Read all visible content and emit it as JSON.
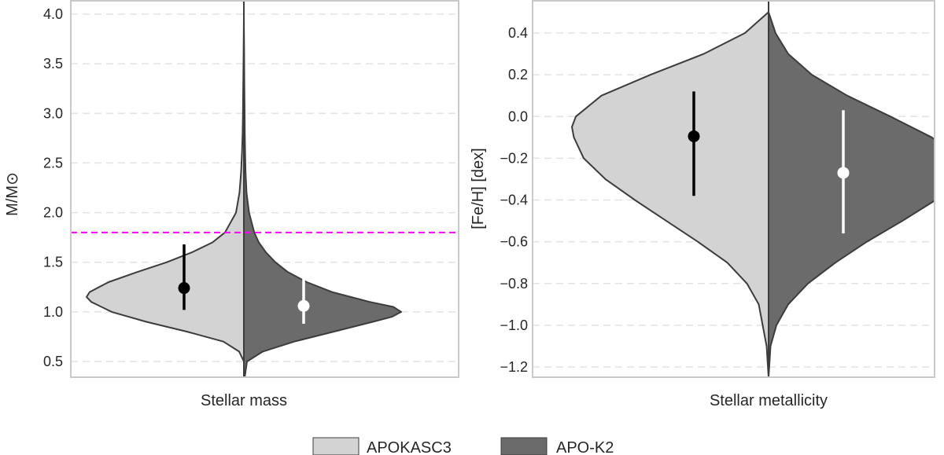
{
  "chart_data": [
    {
      "type": "violin",
      "xlabel": "Stellar mass",
      "ylabel": "M/M⊙",
      "ylim": [
        0.3,
        4.1
      ],
      "yticks": [
        0.5,
        1.0,
        1.5,
        2.0,
        2.5,
        3.0,
        3.5,
        4.0
      ],
      "ytick_labels": [
        "0.5",
        "1.0",
        "1.5",
        "2.0",
        "2.5",
        "3.0",
        "3.5",
        "4.0"
      ],
      "reference_line": {
        "y": 1.8,
        "color": "#ff00ff",
        "style": "dashed"
      },
      "series": [
        {
          "name": "APOKASC3",
          "side": "left",
          "color": "#d3d3d3",
          "shape_y": [
            0.5,
            0.6,
            0.7,
            0.8,
            0.9,
            1.0,
            1.1,
            1.15,
            1.2,
            1.3,
            1.4,
            1.5,
            1.6,
            1.7,
            1.8,
            2.0,
            2.2,
            2.4,
            2.6,
            2.8,
            3.0,
            3.3,
            3.6,
            3.97
          ],
          "shape_density": [
            0.0,
            0.03,
            0.13,
            0.36,
            0.62,
            0.84,
            0.97,
            1.0,
            0.98,
            0.86,
            0.68,
            0.49,
            0.33,
            0.2,
            0.12,
            0.05,
            0.028,
            0.018,
            0.012,
            0.008,
            0.006,
            0.004,
            0.002,
            0.0
          ],
          "median": 1.24,
          "interval": [
            1.02,
            1.68
          ],
          "marker_color": "#000000"
        },
        {
          "name": "APO-K2",
          "side": "right",
          "color": "#6b6b6b",
          "shape_y": [
            0.28,
            0.5,
            0.6,
            0.7,
            0.8,
            0.9,
            0.95,
            1.0,
            1.05,
            1.1,
            1.2,
            1.3,
            1.4,
            1.5,
            1.6,
            1.7,
            1.8,
            2.0,
            2.2,
            2.4,
            2.6,
            2.8,
            3.0,
            3.3,
            3.6,
            3.97
          ],
          "shape_density": [
            0.0,
            0.02,
            0.12,
            0.32,
            0.57,
            0.82,
            0.94,
            1.0,
            0.95,
            0.8,
            0.56,
            0.4,
            0.28,
            0.2,
            0.14,
            0.095,
            0.066,
            0.033,
            0.017,
            0.011,
            0.008,
            0.006,
            0.005,
            0.003,
            0.002,
            0.0
          ],
          "median": 1.06,
          "interval": [
            0.88,
            1.36
          ],
          "marker_color": "#ffffff"
        }
      ]
    },
    {
      "type": "violin",
      "xlabel": "Stellar metallicity",
      "ylabel": "[Fe/H] [dex]",
      "ylim": [
        -1.25,
        0.52
      ],
      "yticks": [
        -1.2,
        -1.0,
        -0.8,
        -0.6,
        -0.4,
        -0.2,
        0.0,
        0.2,
        0.4
      ],
      "ytick_labels": [
        "−1.2",
        "−1.0",
        "−0.8",
        "−0.6",
        "−0.4",
        "−0.2",
        "0.0",
        "0.2",
        "0.4"
      ],
      "series": [
        {
          "name": "APOKASC3",
          "side": "left",
          "color": "#d3d3d3",
          "shape_y": [
            -1.25,
            -1.1,
            -0.9,
            -0.8,
            -0.7,
            -0.6,
            -0.5,
            -0.4,
            -0.3,
            -0.2,
            -0.1,
            -0.05,
            0.0,
            0.1,
            0.2,
            0.3,
            0.4,
            0.5
          ],
          "shape_density": [
            0.0,
            0.01,
            0.05,
            0.11,
            0.21,
            0.36,
            0.52,
            0.68,
            0.83,
            0.94,
            0.99,
            1.0,
            0.98,
            0.85,
            0.6,
            0.33,
            0.12,
            0.0
          ],
          "median": -0.095,
          "interval": [
            -0.38,
            0.12
          ],
          "marker_color": "#000000"
        },
        {
          "name": "APO-K2",
          "side": "right",
          "color": "#6b6b6b",
          "shape_y": [
            -1.25,
            -1.1,
            -1.0,
            -0.9,
            -0.8,
            -0.7,
            -0.6,
            -0.5,
            -0.4,
            -0.3,
            -0.25,
            -0.2,
            -0.1,
            0.0,
            0.1,
            0.2,
            0.3,
            0.4,
            0.5
          ],
          "shape_density": [
            0.0,
            0.01,
            0.04,
            0.1,
            0.2,
            0.34,
            0.5,
            0.68,
            0.85,
            0.97,
            1.0,
            0.97,
            0.83,
            0.62,
            0.4,
            0.22,
            0.1,
            0.035,
            0.0
          ],
          "median": -0.27,
          "interval": [
            -0.56,
            0.03
          ],
          "marker_color": "#ffffff"
        }
      ]
    }
  ],
  "legend": {
    "items": [
      {
        "label": "APOKASC3",
        "color": "#d3d3d3"
      },
      {
        "label": "APO-K2",
        "color": "#6b6b6b"
      }
    ]
  }
}
